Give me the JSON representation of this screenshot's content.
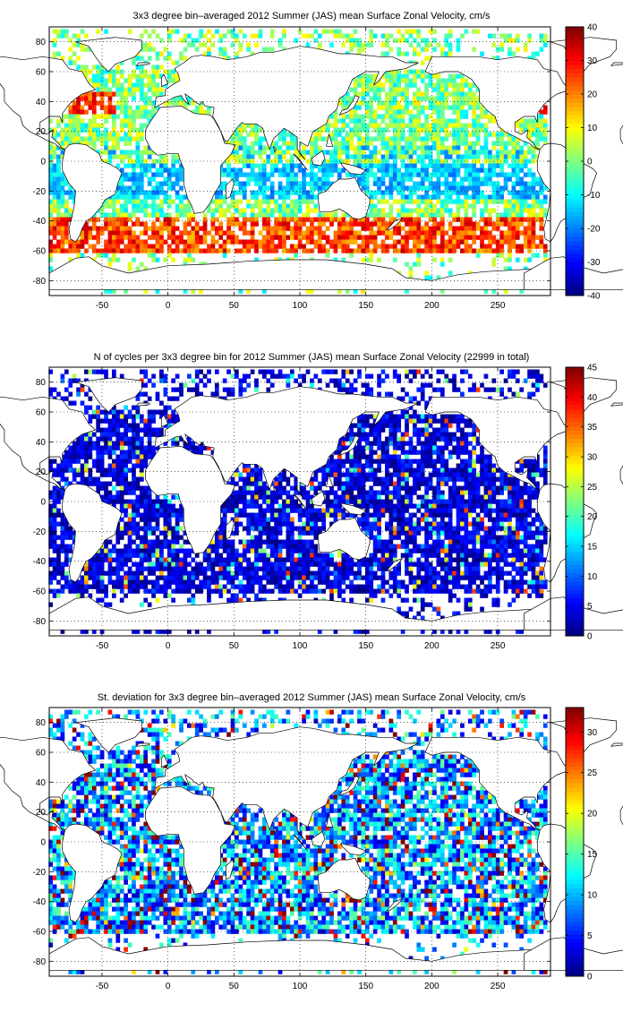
{
  "chart_data": [
    {
      "type": "heatmap",
      "title": "3x3 degree bin–averaged 2012 Summer (JAS) mean Surface Zonal Velocity, cm/s",
      "xlim": [
        -90,
        290
      ],
      "ylim": [
        -90,
        90
      ],
      "x_ticks": [
        "-50",
        "0",
        "50",
        "100",
        "150",
        "200",
        "250"
      ],
      "y_ticks": [
        "80",
        "60",
        "40",
        "20",
        "0",
        "-20",
        "-40",
        "-60",
        "-80"
      ],
      "colorbar": {
        "min": -40,
        "max": 40,
        "ticks": [
          "40",
          "30",
          "20",
          "10",
          "0",
          "-10",
          "-20",
          "-30",
          "-40"
        ]
      },
      "grid": true,
      "colormap": "jet"
    },
    {
      "type": "heatmap",
      "title": "N of cycles per 3x3 degree bin for 2012 Summer (JAS) mean Surface Zonal Velocity (22999 in total)",
      "xlim": [
        -90,
        290
      ],
      "ylim": [
        -90,
        90
      ],
      "x_ticks": [
        "-50",
        "0",
        "50",
        "100",
        "150",
        "200",
        "250"
      ],
      "y_ticks": [
        "80",
        "60",
        "40",
        "20",
        "0",
        "-20",
        "-40",
        "-60",
        "-80"
      ],
      "colorbar": {
        "min": 0,
        "max": 45,
        "ticks": [
          "45",
          "40",
          "35",
          "30",
          "25",
          "20",
          "15",
          "10",
          "5",
          "0"
        ]
      },
      "grid": true,
      "colormap": "jet"
    },
    {
      "type": "heatmap",
      "title": "St. deviation for 3x3 degree bin–averaged 2012 Summer (JAS) mean Surface Zonal Velocity, cm/s",
      "xlim": [
        -90,
        290
      ],
      "ylim": [
        -90,
        90
      ],
      "x_ticks": [
        "-50",
        "0",
        "50",
        "100",
        "150",
        "200",
        "250"
      ],
      "y_ticks": [
        "80",
        "60",
        "40",
        "20",
        "0",
        "-20",
        "-40",
        "-60",
        "-80"
      ],
      "colorbar": {
        "min": 0,
        "max": 33,
        "ticks": [
          "30",
          "25",
          "20",
          "15",
          "10",
          "5",
          "0"
        ]
      },
      "grid": true,
      "colormap": "jet"
    }
  ]
}
